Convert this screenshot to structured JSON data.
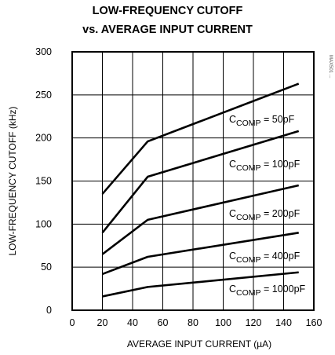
{
  "chart_data": {
    "type": "line",
    "title": "LOW-FREQUENCY CUTOFF",
    "subtitle": "vs. AVERAGE INPUT CURRENT",
    "xlabel": "AVERAGE INPUT CURRENT (µA)",
    "ylabel": "LOW-FREQUENCY CUTOFF (kHz)",
    "xlim": [
      0,
      160
    ],
    "ylim": [
      0,
      300
    ],
    "xticks": [
      0,
      20,
      40,
      60,
      80,
      100,
      120,
      140,
      160
    ],
    "yticks": [
      0,
      50,
      100,
      150,
      200,
      250,
      300
    ],
    "grid": true,
    "series": [
      {
        "name": "C_COMP = 50pF",
        "label_main": "C",
        "label_sub": "COMP",
        "label_rest": " = 50pF",
        "x": [
          20,
          50,
          150
        ],
        "values": [
          135,
          196,
          263
        ]
      },
      {
        "name": "C_COMP = 100pF",
        "label_main": "C",
        "label_sub": "COMP",
        "label_rest": " = 100pF",
        "x": [
          20,
          50,
          150
        ],
        "values": [
          90,
          155,
          208
        ]
      },
      {
        "name": "C_COMP = 200pF",
        "label_main": "C",
        "label_sub": "COMP",
        "label_rest": " = 200pF",
        "x": [
          20,
          50,
          150
        ],
        "values": [
          65,
          105,
          145
        ]
      },
      {
        "name": "C_COMP = 400pF",
        "label_main": "C",
        "label_sub": "COMP",
        "label_rest": " = 400pF",
        "x": [
          20,
          50,
          150
        ],
        "values": [
          42,
          62,
          90
        ]
      },
      {
        "name": "C_COMP = 1000pF",
        "label_main": "C",
        "label_sub": "COMP",
        "label_rest": " = 1000pF",
        "x": [
          20,
          50,
          150
        ],
        "values": [
          16,
          27,
          44
        ]
      }
    ],
    "side_note": "MAX501 ..."
  }
}
